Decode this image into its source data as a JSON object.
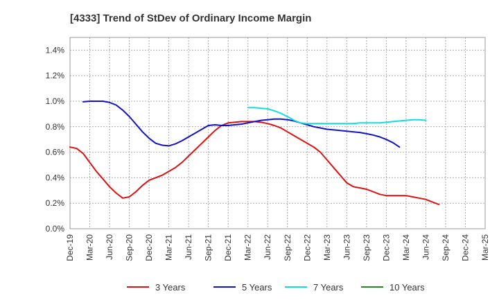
{
  "chart_data": {
    "type": "line",
    "title": "[4333]  Trend of StDev of Ordinary Income Margin",
    "xlabel": "",
    "ylabel": "",
    "x_ticks": [
      "Dec-19",
      "Mar-20",
      "Jun-20",
      "Sep-20",
      "Dec-20",
      "Mar-21",
      "Jun-21",
      "Sep-21",
      "Dec-21",
      "Mar-22",
      "Jun-22",
      "Sep-22",
      "Dec-22",
      "Mar-23",
      "Jun-23",
      "Sep-23",
      "Dec-23",
      "Mar-24",
      "Jun-24",
      "Sep-24",
      "Dec-24",
      "Mar-25"
    ],
    "y_ticks": [
      "0.0%",
      "0.2%",
      "0.4%",
      "0.6%",
      "0.8%",
      "1.0%",
      "1.2%",
      "1.4%"
    ],
    "ylim": [
      0,
      1.5
    ],
    "grid": true,
    "legend_position": "bottom",
    "series": [
      {
        "name": "3 Years",
        "color": "#dd1111",
        "points": [
          [
            "Dec-19",
            0.64
          ],
          [
            "Jan-20",
            0.63
          ],
          [
            "Feb-20",
            0.59
          ],
          [
            "Mar-20",
            0.52
          ],
          [
            "Apr-20",
            0.45
          ],
          [
            "May-20",
            0.39
          ],
          [
            "Jun-20",
            0.33
          ],
          [
            "Jul-20",
            0.28
          ],
          [
            "Aug-20",
            0.24
          ],
          [
            "Sep-20",
            0.25
          ],
          [
            "Oct-20",
            0.29
          ],
          [
            "Nov-20",
            0.34
          ],
          [
            "Dec-20",
            0.38
          ],
          [
            "Jan-21",
            0.4
          ],
          [
            "Feb-21",
            0.42
          ],
          [
            "Mar-21",
            0.45
          ],
          [
            "Apr-21",
            0.48
          ],
          [
            "May-21",
            0.52
          ],
          [
            "Jun-21",
            0.57
          ],
          [
            "Jul-21",
            0.62
          ],
          [
            "Aug-21",
            0.67
          ],
          [
            "Sep-21",
            0.72
          ],
          [
            "Oct-21",
            0.77
          ],
          [
            "Nov-21",
            0.81
          ],
          [
            "Dec-21",
            0.83
          ],
          [
            "Jan-22",
            0.835
          ],
          [
            "Feb-22",
            0.84
          ],
          [
            "Mar-22",
            0.84
          ],
          [
            "Apr-22",
            0.84
          ],
          [
            "May-22",
            0.835
          ],
          [
            "Jun-22",
            0.825
          ],
          [
            "Jul-22",
            0.81
          ],
          [
            "Aug-22",
            0.79
          ],
          [
            "Sep-22",
            0.76
          ],
          [
            "Oct-22",
            0.73
          ],
          [
            "Nov-22",
            0.7
          ],
          [
            "Dec-22",
            0.67
          ],
          [
            "Jan-23",
            0.64
          ],
          [
            "Feb-23",
            0.6
          ],
          [
            "Mar-23",
            0.54
          ],
          [
            "Apr-23",
            0.48
          ],
          [
            "May-23",
            0.42
          ],
          [
            "Jun-23",
            0.36
          ],
          [
            "Jul-23",
            0.33
          ],
          [
            "Aug-23",
            0.32
          ],
          [
            "Sep-23",
            0.31
          ],
          [
            "Oct-23",
            0.29
          ],
          [
            "Nov-23",
            0.27
          ],
          [
            "Dec-23",
            0.26
          ],
          [
            "Jan-24",
            0.26
          ],
          [
            "Feb-24",
            0.26
          ],
          [
            "Mar-24",
            0.26
          ],
          [
            "Apr-24",
            0.25
          ],
          [
            "May-24",
            0.24
          ],
          [
            "Jun-24",
            0.23
          ],
          [
            "Jul-24",
            0.21
          ],
          [
            "Aug-24",
            0.19
          ]
        ]
      },
      {
        "name": "5 Years",
        "color": "#1111cc",
        "points": [
          [
            "Feb-20",
            0.995
          ],
          [
            "Mar-20",
            1.0
          ],
          [
            "Apr-20",
            1.0
          ],
          [
            "May-20",
            1.0
          ],
          [
            "Jun-20",
            0.99
          ],
          [
            "Jul-20",
            0.97
          ],
          [
            "Aug-20",
            0.93
          ],
          [
            "Sep-20",
            0.88
          ],
          [
            "Oct-20",
            0.82
          ],
          [
            "Nov-20",
            0.76
          ],
          [
            "Dec-20",
            0.71
          ],
          [
            "Jan-21",
            0.67
          ],
          [
            "Feb-21",
            0.655
          ],
          [
            "Mar-21",
            0.65
          ],
          [
            "Apr-21",
            0.665
          ],
          [
            "May-21",
            0.69
          ],
          [
            "Jun-21",
            0.72
          ],
          [
            "Jul-21",
            0.75
          ],
          [
            "Aug-21",
            0.78
          ],
          [
            "Sep-21",
            0.81
          ],
          [
            "Oct-21",
            0.815
          ],
          [
            "Nov-21",
            0.81
          ],
          [
            "Dec-21",
            0.81
          ],
          [
            "Jan-22",
            0.815
          ],
          [
            "Feb-22",
            0.82
          ],
          [
            "Mar-22",
            0.83
          ],
          [
            "Apr-22",
            0.84
          ],
          [
            "May-22",
            0.85
          ],
          [
            "Jun-22",
            0.855
          ],
          [
            "Jul-22",
            0.86
          ],
          [
            "Aug-22",
            0.86
          ],
          [
            "Sep-22",
            0.855
          ],
          [
            "Oct-22",
            0.845
          ],
          [
            "Nov-22",
            0.83
          ],
          [
            "Dec-22",
            0.815
          ],
          [
            "Jan-23",
            0.8
          ],
          [
            "Feb-23",
            0.79
          ],
          [
            "Mar-23",
            0.78
          ],
          [
            "Apr-23",
            0.775
          ],
          [
            "May-23",
            0.77
          ],
          [
            "Jun-23",
            0.765
          ],
          [
            "Jul-23",
            0.76
          ],
          [
            "Aug-23",
            0.755
          ],
          [
            "Sep-23",
            0.745
          ],
          [
            "Oct-23",
            0.735
          ],
          [
            "Nov-23",
            0.72
          ],
          [
            "Dec-23",
            0.7
          ],
          [
            "Jan-24",
            0.675
          ],
          [
            "Feb-24",
            0.64
          ]
        ]
      },
      {
        "name": "7 Years",
        "color": "#11dddd",
        "points": [
          [
            "Mar-22",
            0.95
          ],
          [
            "Apr-22",
            0.95
          ],
          [
            "May-22",
            0.945
          ],
          [
            "Jun-22",
            0.94
          ],
          [
            "Jul-22",
            0.925
          ],
          [
            "Aug-22",
            0.905
          ],
          [
            "Sep-22",
            0.88
          ],
          [
            "Oct-22",
            0.85
          ],
          [
            "Nov-22",
            0.83
          ],
          [
            "Dec-22",
            0.825
          ],
          [
            "Jan-23",
            0.825
          ],
          [
            "Feb-23",
            0.825
          ],
          [
            "Mar-23",
            0.825
          ],
          [
            "Apr-23",
            0.825
          ],
          [
            "May-23",
            0.825
          ],
          [
            "Jun-23",
            0.825
          ],
          [
            "Jul-23",
            0.825
          ],
          [
            "Aug-23",
            0.83
          ],
          [
            "Sep-23",
            0.83
          ],
          [
            "Oct-23",
            0.83
          ],
          [
            "Nov-23",
            0.83
          ],
          [
            "Dec-23",
            0.835
          ],
          [
            "Jan-24",
            0.84
          ],
          [
            "Feb-24",
            0.845
          ],
          [
            "Mar-24",
            0.85
          ],
          [
            "Apr-24",
            0.855
          ],
          [
            "May-24",
            0.855
          ],
          [
            "Jun-24",
            0.85
          ]
        ]
      },
      {
        "name": "10 Years",
        "color": "#228822",
        "points": []
      }
    ]
  }
}
